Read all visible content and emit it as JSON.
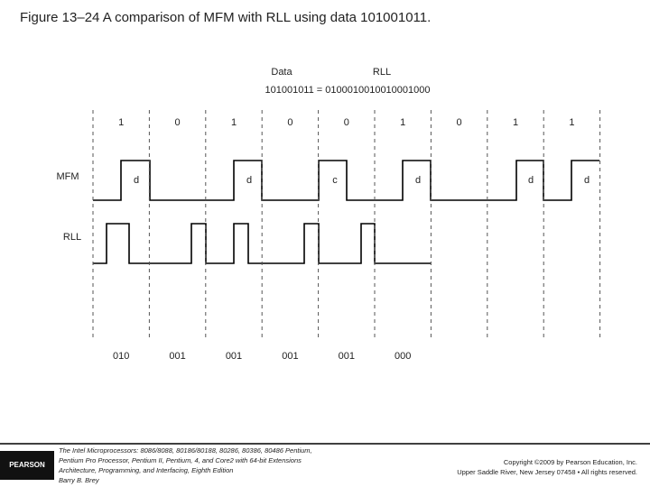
{
  "title": "Figure 13–24  A comparison of MFM with RLL using data 101001011.",
  "header": {
    "data_label": "Data",
    "rll_label": "RLL",
    "equation": "101001011 = 0100010010010001000"
  },
  "bits": [
    "1",
    "0",
    "1",
    "0",
    "0",
    "1",
    "0",
    "1",
    "1"
  ],
  "mfm": {
    "label": "MFM",
    "marks": [
      "d",
      "d",
      "c",
      "d",
      "d",
      "d"
    ]
  },
  "rll": {
    "label": "RLL",
    "groups": [
      "010",
      "001",
      "001",
      "001",
      "001",
      "000"
    ]
  },
  "footer": {
    "logo": "PEARSON",
    "book": [
      "The Intel Microprocessors: 8086/8088, 80186/80188, 80286, 80386, 80486 Pentium,",
      "Pentium Pro Processor, Pentium II, Pentium, 4, and Core2 with 64-bit Extensions",
      "Architecture, Programming, and Interfacing, Eighth Edition",
      "Barry B. Brey"
    ],
    "copyright": [
      "Copyright ©2009 by Pearson Education, Inc.",
      "Upper Saddle River, New Jersey 07458 • All rights reserved."
    ]
  }
}
